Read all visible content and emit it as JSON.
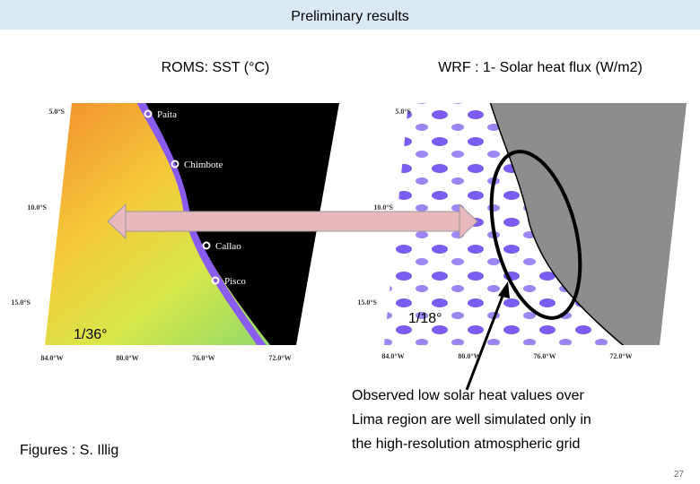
{
  "header": {
    "title": "Preliminary results"
  },
  "panels": [
    {
      "title": "ROMS: SST (°C)",
      "resolution": "1/36°",
      "lat_labels": [
        "5.0°S",
        "10.0°S",
        "15.0°S"
      ],
      "lon_labels": [
        "84.0°W",
        "80.0°W",
        "76.0°W",
        "72.0°W"
      ],
      "cities": [
        "Paita",
        "Chimbote",
        "Callao",
        "Pisco"
      ]
    },
    {
      "title": "WRF : 1- Solar heat flux (W/m2)",
      "resolution": "1/18°",
      "lat_labels": [
        "5.0°S",
        "10.0°S",
        "15.0°S"
      ],
      "lon_labels": [
        "84.0°W",
        "80.0°W",
        "76.0°W",
        "72.0°W"
      ]
    }
  ],
  "caption": [
    "Observed low solar heat values over",
    "Lima region are well simulated only in",
    "the high-resolution atmospheric grid"
  ],
  "credit": "Figures : S. Illig",
  "page_number": "27"
}
